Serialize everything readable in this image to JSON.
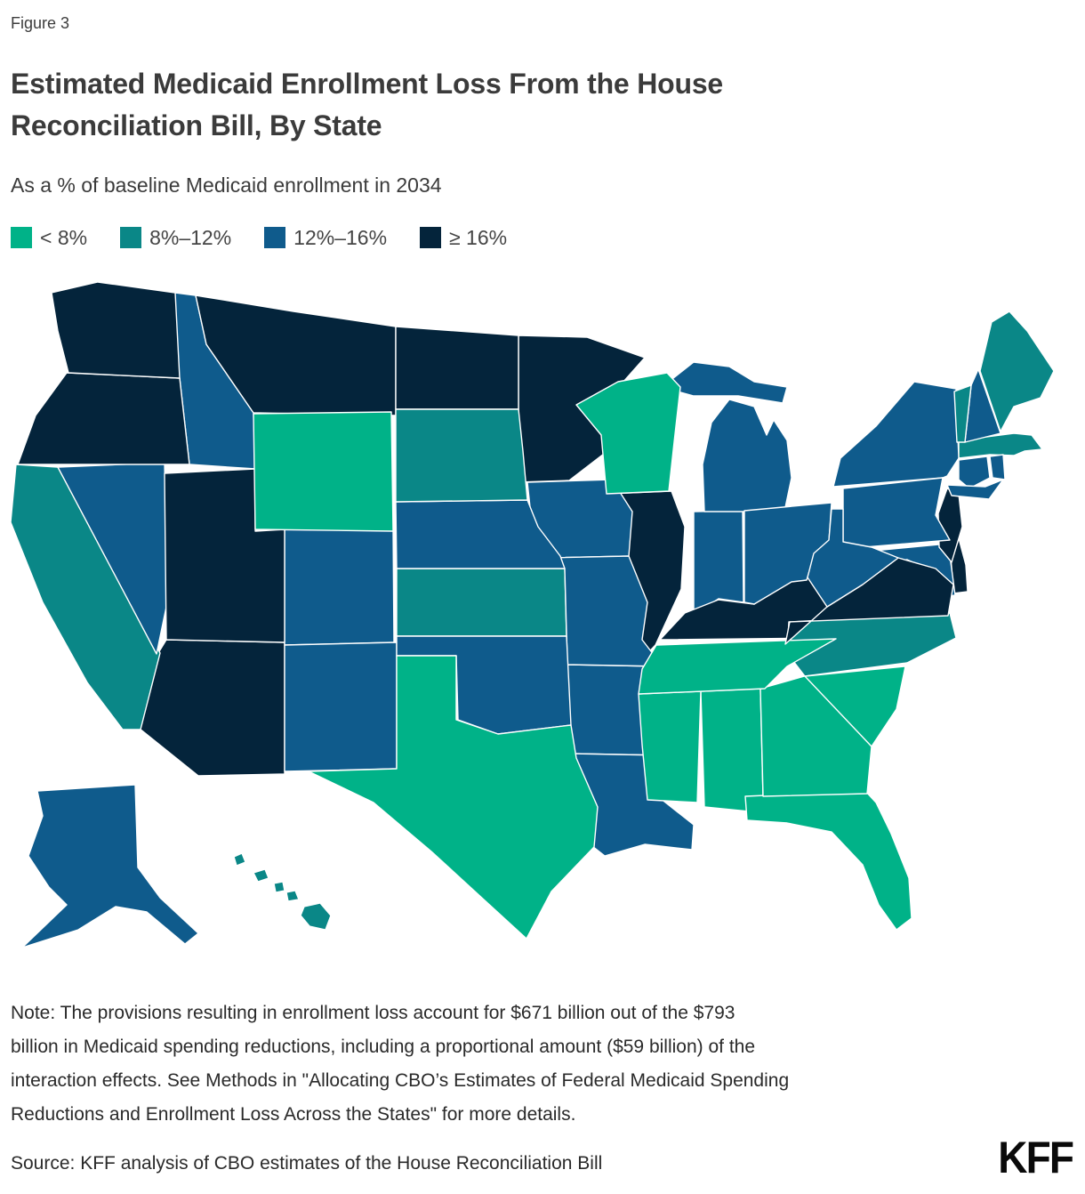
{
  "figure_label": "Figure 3",
  "chart_data": {
    "type": "choropleth",
    "title": "Estimated Medicaid Enrollment Loss From the House\nReconciliation Bill, By State",
    "subtitle": "As a % of baseline Medicaid enrollment in 2034",
    "legend_position": "top-left",
    "bins": [
      {
        "label": "< 8%",
        "color": "#00B288"
      },
      {
        "label": "8%–12%",
        "color": "#0A8787"
      },
      {
        "label": "12%–16%",
        "color": "#0F5B8C"
      },
      {
        "label": "≥ 16%",
        "color": "#04243B"
      }
    ],
    "states": [
      {
        "state": "Alabama",
        "abbr": "AL",
        "bin": "< 8%"
      },
      {
        "state": "Alaska",
        "abbr": "AK",
        "bin": "12%–16%"
      },
      {
        "state": "Arizona",
        "abbr": "AZ",
        "bin": "≥ 16%"
      },
      {
        "state": "Arkansas",
        "abbr": "AR",
        "bin": "12%–16%"
      },
      {
        "state": "California",
        "abbr": "CA",
        "bin": "8%–12%"
      },
      {
        "state": "Colorado",
        "abbr": "CO",
        "bin": "12%–16%"
      },
      {
        "state": "Connecticut",
        "abbr": "CT",
        "bin": "12%–16%"
      },
      {
        "state": "Delaware",
        "abbr": "DE",
        "bin": "≥ 16%"
      },
      {
        "state": "Florida",
        "abbr": "FL",
        "bin": "< 8%"
      },
      {
        "state": "Georgia",
        "abbr": "GA",
        "bin": "< 8%"
      },
      {
        "state": "Hawaii",
        "abbr": "HI",
        "bin": "8%–12%"
      },
      {
        "state": "Idaho",
        "abbr": "ID",
        "bin": "12%–16%"
      },
      {
        "state": "Illinois",
        "abbr": "IL",
        "bin": "≥ 16%"
      },
      {
        "state": "Indiana",
        "abbr": "IN",
        "bin": "12%–16%"
      },
      {
        "state": "Iowa",
        "abbr": "IA",
        "bin": "12%–16%"
      },
      {
        "state": "Kansas",
        "abbr": "KS",
        "bin": "8%–12%"
      },
      {
        "state": "Kentucky",
        "abbr": "KY",
        "bin": "≥ 16%"
      },
      {
        "state": "Louisiana",
        "abbr": "LA",
        "bin": "12%–16%"
      },
      {
        "state": "Maine",
        "abbr": "ME",
        "bin": "8%–12%"
      },
      {
        "state": "Maryland",
        "abbr": "MD",
        "bin": "12%–16%"
      },
      {
        "state": "Massachusetts",
        "abbr": "MA",
        "bin": "8%–12%"
      },
      {
        "state": "Michigan",
        "abbr": "MI",
        "bin": "12%–16%"
      },
      {
        "state": "Minnesota",
        "abbr": "MN",
        "bin": "≥ 16%"
      },
      {
        "state": "Mississippi",
        "abbr": "MS",
        "bin": "< 8%"
      },
      {
        "state": "Missouri",
        "abbr": "MO",
        "bin": "12%–16%"
      },
      {
        "state": "Montana",
        "abbr": "MT",
        "bin": "≥ 16%"
      },
      {
        "state": "Nebraska",
        "abbr": "NE",
        "bin": "12%–16%"
      },
      {
        "state": "Nevada",
        "abbr": "NV",
        "bin": "12%–16%"
      },
      {
        "state": "New Hampshire",
        "abbr": "NH",
        "bin": "12%–16%"
      },
      {
        "state": "New Jersey",
        "abbr": "NJ",
        "bin": "≥ 16%"
      },
      {
        "state": "New Mexico",
        "abbr": "NM",
        "bin": "12%–16%"
      },
      {
        "state": "New York",
        "abbr": "NY",
        "bin": "12%–16%"
      },
      {
        "state": "North Carolina",
        "abbr": "NC",
        "bin": "8%–12%"
      },
      {
        "state": "North Dakota",
        "abbr": "ND",
        "bin": "≥ 16%"
      },
      {
        "state": "Ohio",
        "abbr": "OH",
        "bin": "12%–16%"
      },
      {
        "state": "Oklahoma",
        "abbr": "OK",
        "bin": "12%–16%"
      },
      {
        "state": "Oregon",
        "abbr": "OR",
        "bin": "≥ 16%"
      },
      {
        "state": "Pennsylvania",
        "abbr": "PA",
        "bin": "12%–16%"
      },
      {
        "state": "Rhode Island",
        "abbr": "RI",
        "bin": "12%–16%"
      },
      {
        "state": "South Carolina",
        "abbr": "SC",
        "bin": "< 8%"
      },
      {
        "state": "South Dakota",
        "abbr": "SD",
        "bin": "8%–12%"
      },
      {
        "state": "Tennessee",
        "abbr": "TN",
        "bin": "< 8%"
      },
      {
        "state": "Texas",
        "abbr": "TX",
        "bin": "< 8%"
      },
      {
        "state": "Utah",
        "abbr": "UT",
        "bin": "≥ 16%"
      },
      {
        "state": "Vermont",
        "abbr": "VT",
        "bin": "8%–12%"
      },
      {
        "state": "Virginia",
        "abbr": "VA",
        "bin": "≥ 16%"
      },
      {
        "state": "Washington",
        "abbr": "WA",
        "bin": "≥ 16%"
      },
      {
        "state": "West Virginia",
        "abbr": "WV",
        "bin": "12%–16%"
      },
      {
        "state": "Wisconsin",
        "abbr": "WI",
        "bin": "< 8%"
      },
      {
        "state": "Wyoming",
        "abbr": "WY",
        "bin": "< 8%"
      }
    ]
  },
  "note": "Note: The provisions resulting in enrollment loss account for $671 billion out of the $793\nbillion in Medicaid spending reductions, including a proportional amount ($59 billion) of the\ninteraction effects. See Methods in \"Allocating CBO’s Estimates of Federal Medicaid Spending\nReductions and Enrollment Loss Across the States\" for more details.",
  "source": "Source: KFF analysis of CBO estimates of the House Reconciliation Bill",
  "logo": "KFF"
}
